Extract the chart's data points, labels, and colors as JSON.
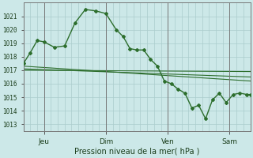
{
  "xlabel": "Pression niveau de la mer( hPa )",
  "background_color": "#cce8e8",
  "grid_color": "#aacccc",
  "line_color": "#2d6e2d",
  "ylim": [
    1012.5,
    1022.0
  ],
  "yticks": [
    1013,
    1014,
    1015,
    1016,
    1017,
    1018,
    1019,
    1020,
    1021
  ],
  "day_labels": [
    "Jeu",
    "Dim",
    "Ven",
    "Sam"
  ],
  "day_positions": [
    24,
    96,
    168,
    240
  ],
  "xlim": [
    0,
    264
  ],
  "series1_x": [
    0,
    8,
    16,
    24,
    36,
    48,
    60,
    72,
    84,
    96,
    108,
    116,
    124,
    132,
    140,
    148,
    156,
    164,
    172,
    180,
    188,
    196,
    204,
    212,
    220,
    228,
    236,
    244,
    252,
    260,
    264
  ],
  "series1_y": [
    1017.5,
    1018.3,
    1019.2,
    1019.1,
    1018.7,
    1018.8,
    1020.5,
    1021.5,
    1021.4,
    1021.2,
    1020.0,
    1019.5,
    1018.6,
    1018.5,
    1018.5,
    1017.8,
    1017.3,
    1016.2,
    1016.0,
    1015.6,
    1015.3,
    1014.2,
    1014.4,
    1013.4,
    1014.8,
    1015.3,
    1014.6,
    1015.2,
    1015.3,
    1015.2,
    1015.2
  ],
  "series2_x": [
    0,
    264
  ],
  "series2_y": [
    1017.3,
    1016.2
  ],
  "series3_x": [
    0,
    264
  ],
  "series3_y": [
    1017.1,
    1016.5
  ],
  "series4_x": [
    0,
    264
  ],
  "series4_y": [
    1017.0,
    1016.9
  ]
}
